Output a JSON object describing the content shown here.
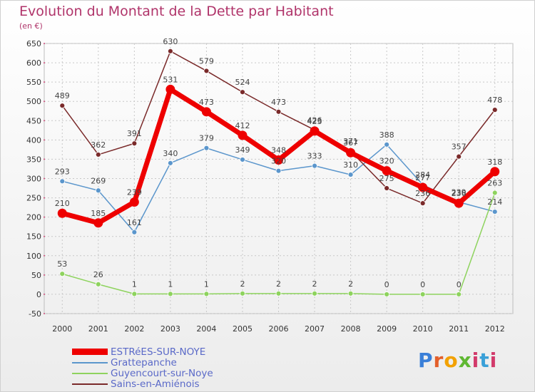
{
  "chart_data": {
    "type": "line",
    "title": "Evolution du Montant de la Dette par Habitant",
    "unit_label": "(en €)",
    "x": [
      "2000",
      "2001",
      "2002",
      "2003",
      "2004",
      "2005",
      "2006",
      "2007",
      "2008",
      "2009",
      "2010",
      "2011",
      "2012"
    ],
    "ylim": [
      -50,
      650
    ],
    "yticks": [
      "-50",
      "0",
      "50",
      "100",
      "150",
      "200",
      "250",
      "300",
      "350",
      "400",
      "450",
      "500",
      "550",
      "600",
      "650"
    ],
    "grid": true,
    "legend_position": "bottom-left",
    "series": [
      {
        "name": "ESTRéES-SUR-NOYE",
        "color": "#ee0000",
        "values": [
          210,
          185,
          239,
          531,
          473,
          412,
          348,
          423,
          367,
          320,
          277,
          236,
          318
        ],
        "labels": [
          "210",
          "185",
          "239",
          "531",
          "473",
          "412",
          "348",
          "423",
          "367",
          "320",
          "277",
          "236",
          "318"
        ]
      },
      {
        "name": "Grattepanche",
        "color": "#5b96cc",
        "values": [
          293,
          269,
          161,
          340,
          379,
          349,
          320,
          333,
          310,
          388,
          284,
          239,
          214
        ],
        "labels": [
          "293",
          "269",
          "161",
          "340",
          "379",
          "349",
          "320",
          "333",
          "310",
          "388",
          "284",
          "239",
          "214"
        ]
      },
      {
        "name": "Guyencourt-sur-Noye",
        "color": "#8ed35e",
        "values": [
          53,
          26,
          1,
          1,
          1,
          2,
          2,
          2,
          2,
          0,
          0,
          0,
          263
        ],
        "labels": [
          "53",
          "26",
          "1",
          "1",
          "1",
          "2",
          "2",
          "2",
          "2",
          "0",
          "0",
          "0",
          "263"
        ]
      },
      {
        "name": "Sains-en-Amiénois",
        "color": "#7a2a2a",
        "values": [
          489,
          362,
          391,
          630,
          579,
          524,
          473,
          426,
          371,
          275,
          236,
          357,
          478
        ],
        "labels": [
          "489",
          "362",
          "391",
          "630",
          "579",
          "524",
          "473",
          "426",
          "371",
          "275",
          "236",
          "357",
          "478"
        ]
      }
    ]
  },
  "logo": {
    "parts": [
      "P",
      "r",
      "o",
      "x",
      "i",
      "t",
      "i"
    ]
  }
}
